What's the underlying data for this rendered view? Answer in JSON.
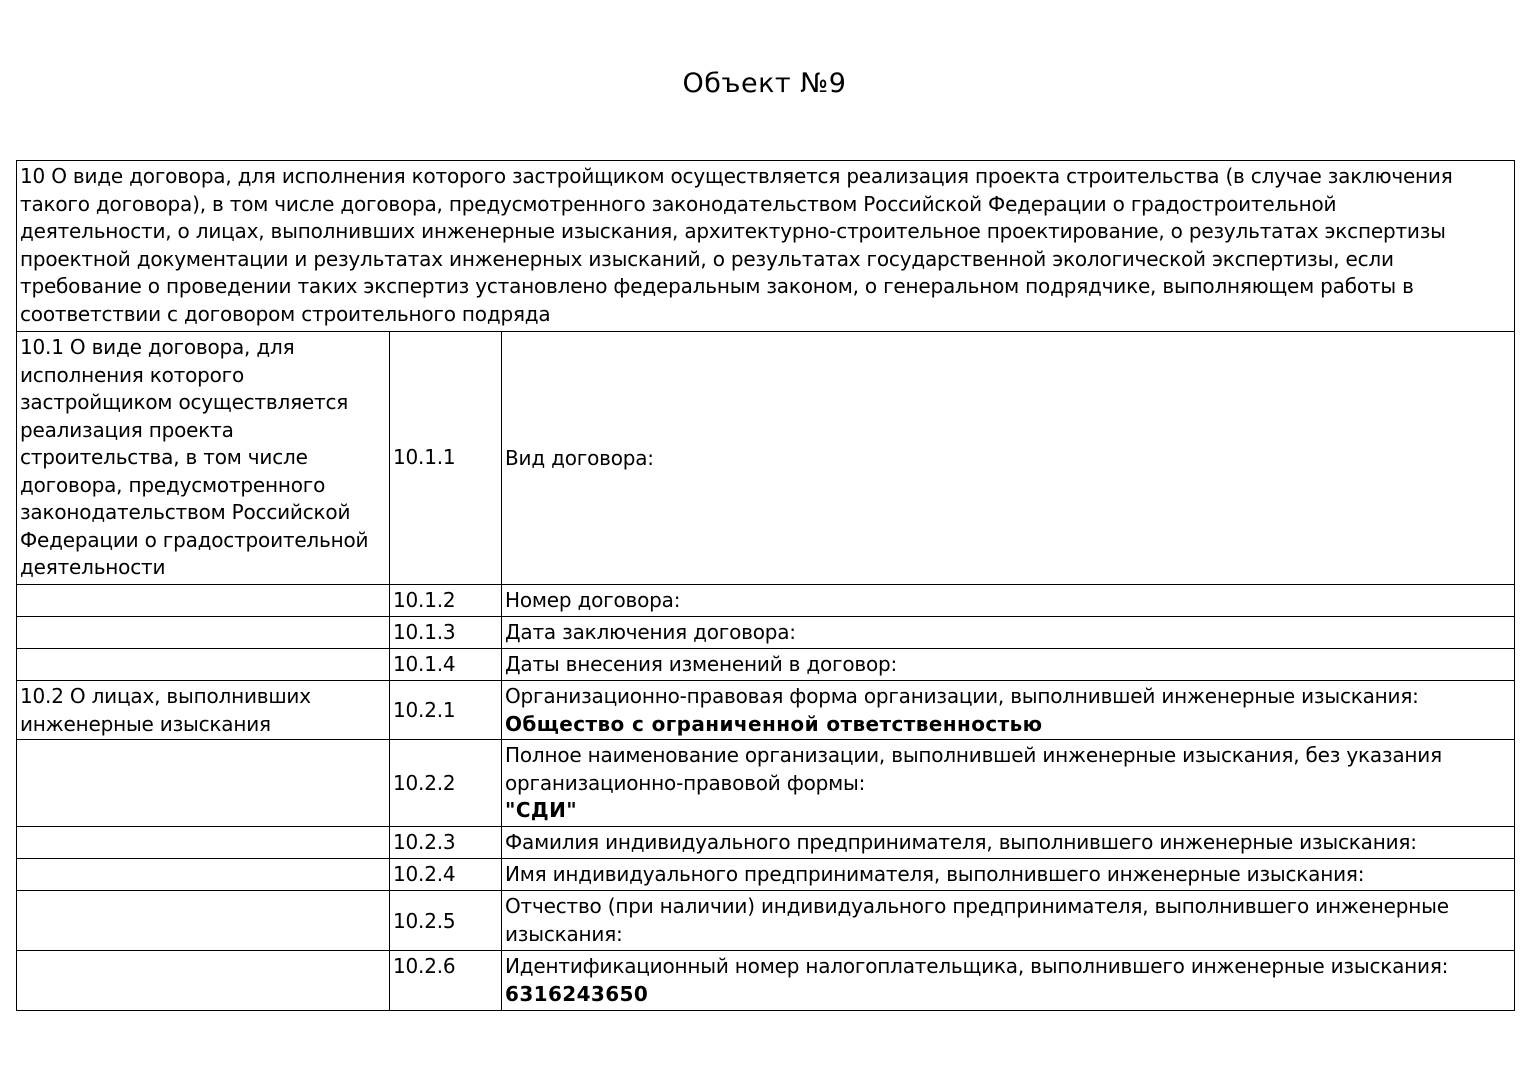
{
  "title": "Объект №9",
  "section": {
    "header_lines": [
      "10 О виде договора, для исполнения которого застройщиком осуществляется реализация проекта строительства (в случае заключения",
      "такого договора), в том числе договора, предусмотренного законодательством Российской Федерации о градостроительной",
      "деятельности, о лицах, выполнивших инженерные изыскания, архитектурно-строительное проектирование, о результатах экспертизы",
      "проектной документации и результатах инженерных изысканий, о результатах государственной экологической экспертизы, если",
      "требование о проведении таких экспертиз установлено федеральным законом, о генеральном подрядчике, выполняющем работы в",
      "соответствии с договором строительного подряда"
    ],
    "group_10_1_lines": [
      "10.1 О виде договора, для",
      "исполнения которого",
      "застройщиком осуществляется",
      "реализация проекта",
      "строительства, в том числе",
      "договора, предусмотренного",
      "законодательством Российской",
      "Федерации о градостроительной",
      "деятельности"
    ],
    "group_10_2_lines": [
      "10.2 О лицах, выполнивших",
      "инженерные изыскания"
    ]
  },
  "rows": [
    {
      "num": "10.1.1",
      "label": [
        "Вид договора:"
      ],
      "value": ""
    },
    {
      "num": "10.1.2",
      "label": [
        "Номер договора:"
      ],
      "value": ""
    },
    {
      "num": "10.1.3",
      "label": [
        "Дата заключения договора:"
      ],
      "value": ""
    },
    {
      "num": "10.1.4",
      "label": [
        "Даты внесения изменений в договор:"
      ],
      "value": ""
    },
    {
      "num": "10.2.1",
      "label": [
        "Организационно-правовая форма организации, выполнившей инженерные изыскания:"
      ],
      "value": "Общество с ограниченной ответственностью"
    },
    {
      "num": "10.2.2",
      "label": [
        "Полное наименование организации, выполнившей инженерные изыскания, без указания",
        "организационно-правовой формы:"
      ],
      "value": "\"СДИ\""
    },
    {
      "num": "10.2.3",
      "label": [
        "Фамилия индивидуального предпринимателя, выполнившего инженерные изыскания:"
      ],
      "value": ""
    },
    {
      "num": "10.2.4",
      "label": [
        "Имя индивидуального предпринимателя, выполнившего инженерные изыскания:"
      ],
      "value": ""
    },
    {
      "num": "10.2.5",
      "label": [
        "Отчество (при наличии) индивидуального предпринимателя, выполнившего инженерные",
        "изыскания:"
      ],
      "value": ""
    },
    {
      "num": "10.2.6",
      "label": [
        "Идентификационный номер налогоплательщика, выполнившего инженерные изыскания:"
      ],
      "value": "6316243650"
    }
  ]
}
